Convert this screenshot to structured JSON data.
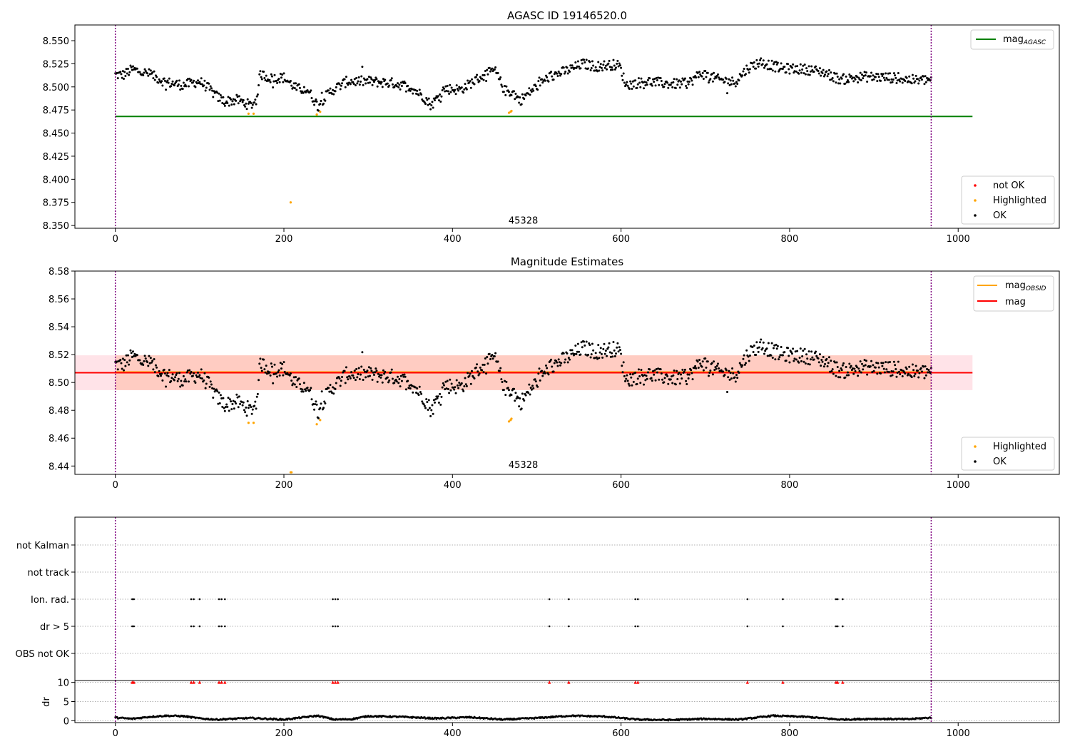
{
  "chart_data": [
    {
      "type": "scatter",
      "title": "AGASC ID 19146520.0",
      "xlabel": "",
      "ylabel": "",
      "xlim": [
        -48,
        1120
      ],
      "ylim": [
        8.347,
        8.567
      ],
      "x_ticks": [
        0,
        200,
        400,
        600,
        800,
        1000
      ],
      "x_tick_labels": [
        "0",
        "200",
        "400",
        "600",
        "800",
        "1000"
      ],
      "y_ticks": [
        8.35,
        8.375,
        8.4,
        8.425,
        8.45,
        8.475,
        8.5,
        8.525,
        8.55
      ],
      "y_tick_labels": [
        "8.350",
        "8.375",
        "8.400",
        "8.425",
        "8.450",
        "8.475",
        "8.500",
        "8.525",
        "8.550"
      ],
      "grid": false,
      "vlines": [
        0,
        968
      ],
      "hline": {
        "name": "mag",
        "name_sub": "AGASC",
        "y": 8.468,
        "x": [
          0,
          1017
        ],
        "color": "#008000"
      },
      "annotation": {
        "text": "45328",
        "x": 484,
        "y": 8.352
      },
      "legend_lines": [
        {
          "name": "mag",
          "name_sub": "AGASC",
          "color": "#008000"
        }
      ],
      "legend_points": [
        {
          "name": "not OK",
          "color": "#ff0000"
        },
        {
          "name": "Highlighted",
          "color": "#ffa500"
        },
        {
          "name": "OK",
          "color": "#000000"
        }
      ],
      "legend_lines_position": "top-right",
      "legend_points_position": "bottom-right",
      "trend": {
        "description": "OK points (black), one per observation index 0-968",
        "x": [
          0,
          10,
          20,
          40,
          60,
          80,
          100,
          110,
          120,
          130,
          145,
          160,
          167,
          172,
          185,
          200,
          215,
          228,
          240,
          255,
          275,
          300,
          330,
          350,
          365,
          375,
          390,
          410,
          430,
          450,
          462,
          472,
          480,
          495,
          515,
          540,
          555,
          570,
          590,
          598,
          606,
          630,
          660,
          680,
          695,
          715,
          735,
          750,
          765,
          790,
          820,
          840,
          860,
          890,
          920,
          950,
          968
        ],
        "y": [
          8.513,
          8.513,
          8.519,
          8.514,
          8.505,
          8.502,
          8.506,
          8.499,
          8.49,
          8.484,
          8.486,
          8.48,
          8.485,
          8.514,
          8.509,
          8.51,
          8.498,
          8.497,
          8.48,
          8.495,
          8.506,
          8.506,
          8.504,
          8.5,
          8.49,
          8.48,
          8.498,
          8.497,
          8.509,
          8.518,
          8.496,
          8.494,
          8.485,
          8.497,
          8.511,
          8.519,
          8.525,
          8.522,
          8.524,
          8.523,
          8.502,
          8.506,
          8.503,
          8.504,
          8.515,
          8.508,
          8.505,
          8.52,
          8.527,
          8.52,
          8.519,
          8.516,
          8.508,
          8.511,
          8.51,
          8.507,
          8.508
        ]
      },
      "scatter": {
        "amplitude": 0.0055,
        "sparse_outliers": 0.012
      },
      "highlighted_points": {
        "x": [
          158,
          164,
          239,
          243,
          208,
          467,
          469,
          470
        ],
        "y": [
          8.471,
          8.471,
          8.47,
          8.473,
          8.375,
          8.472,
          8.473,
          8.474
        ]
      },
      "not_ok_points": {
        "x": [],
        "y": []
      }
    },
    {
      "type": "scatter",
      "title": "Magnitude Estimates",
      "xlabel": "",
      "ylabel": "",
      "xlim": [
        -48,
        1120
      ],
      "ylim": [
        8.434,
        8.58
      ],
      "x_ticks": [
        0,
        200,
        400,
        600,
        800,
        1000
      ],
      "x_tick_labels": [
        "0",
        "200",
        "400",
        "600",
        "800",
        "1000"
      ],
      "y_ticks": [
        8.44,
        8.46,
        8.48,
        8.5,
        8.52,
        8.54,
        8.56,
        8.58
      ],
      "y_tick_labels": [
        "8.44",
        "8.46",
        "8.48",
        "8.50",
        "8.52",
        "8.54",
        "8.56",
        "8.58"
      ],
      "grid": false,
      "vlines": [
        0,
        968
      ],
      "band_mag": {
        "x": [
          -48,
          1017
        ],
        "y": [
          8.4945,
          8.5195
        ],
        "color": "#ffc0cb"
      },
      "band_obsid": {
        "x": [
          0,
          968
        ],
        "y": [
          8.4945,
          8.5195
        ],
        "color": "#ffa07a"
      },
      "lines": [
        {
          "name": "mag",
          "name_sub": "OBSID",
          "y": 8.5075,
          "x": [
            0,
            968
          ],
          "color": "#ffa500"
        },
        {
          "name": "mag",
          "name_sub": "",
          "y": 8.507,
          "x": [
            -48,
            1017
          ],
          "color": "#ff0000"
        }
      ],
      "annotation": {
        "text": "45328",
        "x": 484,
        "y": 8.4385
      },
      "legend_lines": [
        {
          "name": "mag",
          "name_sub": "OBSID",
          "color": "#ffa500"
        },
        {
          "name": "mag",
          "name_sub": "",
          "color": "#ff0000"
        }
      ],
      "legend_points": [
        {
          "name": "Highlighted",
          "color": "#ffa500"
        },
        {
          "name": "OK",
          "color": "#000000"
        }
      ],
      "legend_lines_position": "top-right",
      "legend_points_position": "bottom-right",
      "trend_same_as_panel": 0,
      "highlighted_points": {
        "x": [
          158,
          164,
          239,
          243,
          208,
          209,
          467,
          469,
          470
        ],
        "y": [
          8.471,
          8.471,
          8.47,
          8.473,
          8.4355,
          8.4355,
          8.472,
          8.473,
          8.474
        ]
      }
    },
    {
      "type": "scatter",
      "title": "",
      "xlabel": "",
      "ylabel": "",
      "xlim": [
        -48,
        1120
      ],
      "x_ticks": [
        0,
        200,
        400,
        600,
        800,
        1000
      ],
      "x_tick_labels": [
        "0",
        "200",
        "400",
        "600",
        "800",
        "1000"
      ],
      "categories": [
        "not Kalman",
        "not track",
        "Ion. rad.",
        "dr > 5",
        "OBS not OK"
      ],
      "grid": true,
      "vlines": [
        0,
        968
      ],
      "flag_points": {
        "Ion. rad.": [
          20,
          22,
          90,
          93,
          100,
          123,
          126,
          130,
          258,
          261,
          264,
          515,
          538,
          617,
          620,
          750,
          792,
          855,
          857,
          863
        ],
        "dr > 5": [
          20,
          22,
          90,
          93,
          100,
          123,
          126,
          130,
          258,
          261,
          264,
          515,
          538,
          617,
          620,
          750,
          792,
          855,
          857,
          863
        ]
      }
    },
    {
      "type": "scatter",
      "title": "",
      "xlabel": "",
      "ylabel": "dr",
      "xlim": [
        -48,
        1120
      ],
      "ylim": [
        -0.5,
        10.5
      ],
      "y_ticks": [
        0,
        5,
        10
      ],
      "y_tick_labels": [
        "0",
        "5",
        "10"
      ],
      "grid": true,
      "vlines": [
        0,
        968
      ],
      "clipped_points": {
        "x": [
          20,
          22,
          90,
          93,
          100,
          123,
          126,
          130,
          258,
          261,
          264,
          515,
          538,
          617,
          620,
          750,
          792,
          855,
          857,
          863
        ],
        "y": 10,
        "color": "#ff0000"
      },
      "dr_trend": {
        "x": [
          0,
          20,
          40,
          60,
          80,
          100,
          120,
          140,
          160,
          180,
          200,
          220,
          240,
          260,
          280,
          300,
          340,
          380,
          420,
          460,
          500,
          540,
          580,
          620,
          660,
          700,
          740,
          780,
          820,
          860,
          900,
          940,
          968
        ],
        "y": [
          0.8,
          0.5,
          1.0,
          1.3,
          1.2,
          0.6,
          0.3,
          0.5,
          0.7,
          0.5,
          0.3,
          0.8,
          1.3,
          0.3,
          0.4,
          1.2,
          1.0,
          0.6,
          0.9,
          0.3,
          0.7,
          1.3,
          1.1,
          0.3,
          0.2,
          0.5,
          0.3,
          1.3,
          1.0,
          0.3,
          0.5,
          0.4,
          0.8
        ]
      }
    }
  ]
}
